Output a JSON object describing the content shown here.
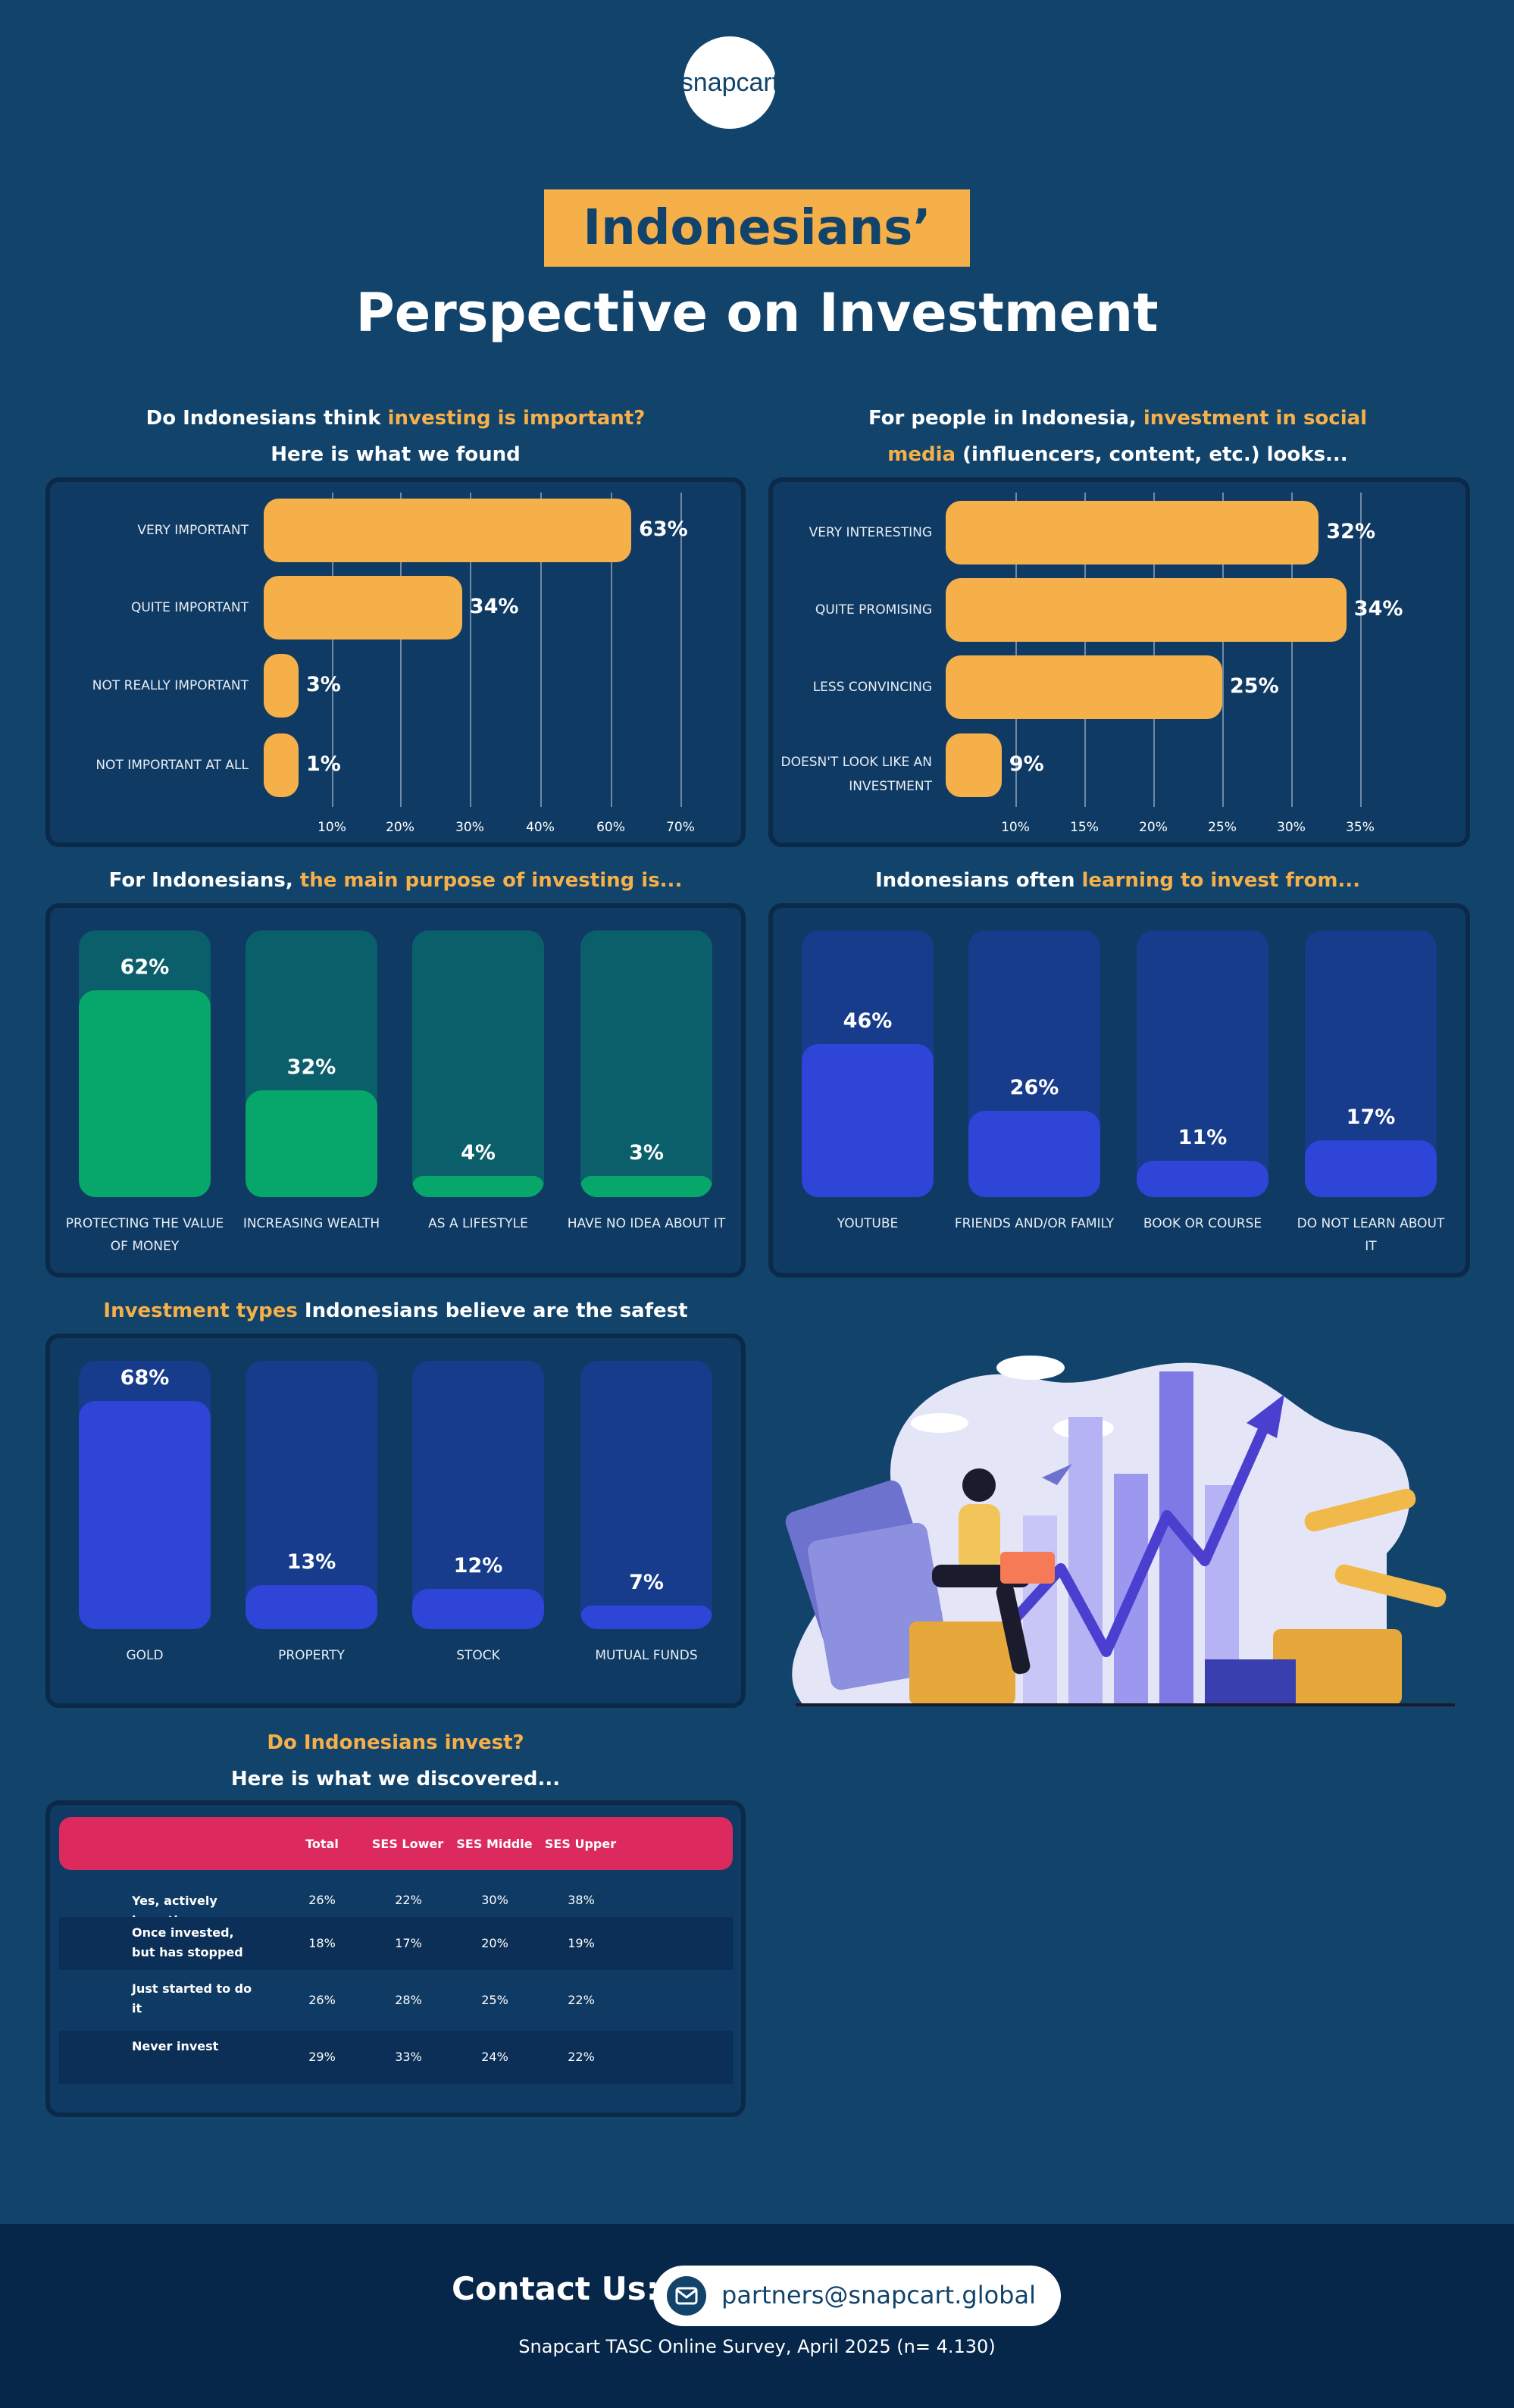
{
  "brand": {
    "logo_text": "snapcart"
  },
  "title": {
    "tag": "Indonesians’",
    "main": "Perspective on Investment"
  },
  "colors": {
    "background": "#11436b",
    "accent": "#f6b04a",
    "green": "#07a66b",
    "teal": "#0b5f6b",
    "blue": "#2e45d8",
    "blue_track": "#173c8b",
    "pink": "#dd2a5e"
  },
  "q1": {
    "pre": "Do Indonesians think ",
    "hl": "investing is important?",
    "line2": "Here is what we found"
  },
  "q2": {
    "pre": "For people in Indonesia, ",
    "hl": "investment in social",
    "hl2": "media",
    "post": " (influencers, content, etc.) looks..."
  },
  "q3": {
    "pre": "For Indonesians, ",
    "hl": "the main purpose of investing is..."
  },
  "q4": {
    "pre": "Indonesians often ",
    "hl": "learning to invest from..."
  },
  "q5": {
    "hl": "Investment types",
    "post": " Indonesians believe are the safest"
  },
  "q6": {
    "hl": "Do Indonesians invest?",
    "line2": "Here is what we discovered..."
  },
  "chart_data": [
    {
      "type": "bar",
      "orientation": "horizontal",
      "categories": [
        "VERY IMPORTANT",
        "QUITE IMPORTANT",
        "NOT REALLY IMPORTANT",
        "NOT IMPORTANT AT ALL"
      ],
      "values": [
        63,
        34,
        3,
        1
      ],
      "value_labels": [
        "63%",
        "34%",
        "3%",
        "1%"
      ],
      "ticks": [
        "10%",
        "20%",
        "30%",
        "40%",
        "60%",
        "70%"
      ],
      "xlim": [
        0,
        70
      ]
    },
    {
      "type": "bar",
      "orientation": "horizontal",
      "categories": [
        "VERY INTERESTING",
        "QUITE PROMISING",
        "LESS CONVINCING",
        "DOESN'T LOOK LIKE AN INVESTMENT"
      ],
      "values": [
        32,
        34,
        25,
        9
      ],
      "value_labels": [
        "32%",
        "34%",
        "25%",
        "9%"
      ],
      "ticks": [
        "10%",
        "15%",
        "20%",
        "25%",
        "30%",
        "35%"
      ],
      "xlim": [
        5,
        35
      ]
    },
    {
      "type": "bar",
      "categories": [
        "PROTECTING THE VALUE OF MONEY",
        "INCREASING WEALTH",
        "AS A LIFESTYLE",
        "HAVE NO IDEA ABOUT IT"
      ],
      "values": [
        62,
        32,
        4,
        3
      ],
      "value_labels": [
        "62%",
        "32%",
        "4%",
        "3%"
      ]
    },
    {
      "type": "bar",
      "categories": [
        "YOUTUBE",
        "FRIENDS AND/OR FAMILY",
        "BOOK OR COURSE",
        "DO NOT LEARN ABOUT IT"
      ],
      "values": [
        46,
        26,
        11,
        17
      ],
      "value_labels": [
        "46%",
        "26%",
        "11%",
        "17%"
      ]
    },
    {
      "type": "bar",
      "categories": [
        "GOLD",
        "PROPERTY",
        "STOCK",
        "MUTUAL FUNDS"
      ],
      "values": [
        68,
        13,
        12,
        7
      ],
      "value_labels": [
        "68%",
        "13%",
        "12%",
        "7%"
      ]
    },
    {
      "type": "table",
      "columns": [
        "Total",
        "SES Lower",
        "SES Middle",
        "SES Upper"
      ],
      "rows": [
        {
          "label": "Yes, actively investing",
          "values": [
            "26%",
            "22%",
            "30%",
            "38%"
          ]
        },
        {
          "label": "Once invested, but has stopped",
          "values": [
            "18%",
            "17%",
            "20%",
            "19%"
          ]
        },
        {
          "label": "Just started to do it",
          "values": [
            "26%",
            "28%",
            "25%",
            "22%"
          ]
        },
        {
          "label": "Never invest",
          "values": [
            "29%",
            "33%",
            "24%",
            "22%"
          ]
        }
      ]
    }
  ],
  "footer": {
    "contact": "Contact Us:",
    "email": "partners@snapcart.global",
    "source": "Snapcart TASC Online Survey, April 2025 (n= 4.130)"
  }
}
